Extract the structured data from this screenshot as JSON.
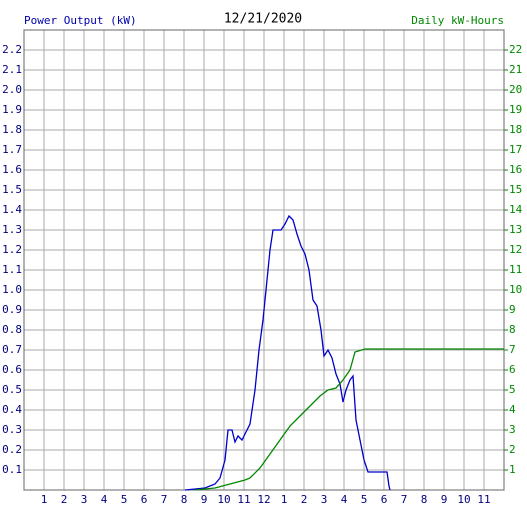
{
  "chart_data": {
    "type": "line",
    "title": "12/21/2020",
    "y_label": "Power Output (kW)",
    "y2_label": "Daily kW-Hours",
    "grid": true,
    "xlim": [
      0,
      24
    ],
    "ylim": [
      0,
      2.3
    ],
    "y2lim": [
      0,
      23
    ],
    "xticks": [
      1,
      2,
      3,
      4,
      5,
      6,
      7,
      8,
      9,
      10,
      11,
      12,
      {
        "value": 13,
        "label": "1"
      },
      {
        "value": 14,
        "label": "2"
      },
      {
        "value": 15,
        "label": "3"
      },
      {
        "value": 16,
        "label": "4"
      },
      {
        "value": 17,
        "label": "5"
      },
      {
        "value": 18,
        "label": "6"
      },
      {
        "value": 19,
        "label": "7"
      },
      {
        "value": 20,
        "label": "8"
      },
      {
        "value": 21,
        "label": "9"
      },
      {
        "value": 22,
        "label": "10"
      },
      {
        "value": 23,
        "label": "11"
      }
    ],
    "yticks": [
      0.1,
      0.2,
      0.3,
      0.4,
      0.5,
      0.6,
      0.7,
      0.8,
      0.9,
      {
        "value": 1,
        "label": "1.0"
      },
      1.1,
      1.2,
      1.3,
      1.4,
      1.5,
      1.6,
      1.7,
      1.8,
      1.9,
      {
        "value": 2,
        "label": "2.0"
      },
      2.1,
      2.2
    ],
    "y2ticks": [
      1,
      2,
      3,
      4,
      5,
      6,
      7,
      8,
      9,
      10,
      11,
      12,
      13,
      14,
      15,
      16,
      17,
      18,
      19,
      20,
      21,
      22
    ],
    "series": [
      {
        "color": "#0000cc",
        "x": [
          8.05,
          9.05,
          9.55,
          9.8,
          10.05,
          10.2,
          10.4,
          10.55,
          10.7,
          10.9,
          11.05,
          11.3,
          11.55,
          11.75,
          11.95,
          12.15,
          12.3,
          12.45,
          12.85,
          13.05,
          13.25,
          13.45,
          13.65,
          13.85,
          14.05,
          14.25,
          14.45,
          14.65,
          14.85,
          15.0,
          15.2,
          15.4,
          15.6,
          15.8,
          15.95,
          16.1,
          16.3,
          16.45,
          16.6,
          16.8,
          17.0,
          17.2,
          17.8,
          18.15,
          18.25,
          18.3
        ],
        "values": [
          0,
          0.01,
          0.03,
          0.06,
          0.15,
          0.3,
          0.3,
          0.24,
          0.27,
          0.25,
          0.28,
          0.33,
          0.5,
          0.7,
          0.85,
          1.05,
          1.2,
          1.3,
          1.3,
          1.33,
          1.37,
          1.35,
          1.28,
          1.22,
          1.18,
          1.1,
          0.95,
          0.92,
          0.8,
          0.67,
          0.7,
          0.66,
          0.58,
          0.53,
          0.44,
          0.5,
          0.55,
          0.57,
          0.35,
          0.25,
          0.15,
          0.09,
          0.09,
          0.09,
          0.02,
          0
        ]
      },
      {
        "color": "#008800",
        "axis": "y2",
        "x": [
          8.55,
          9.55,
          10.3,
          11.05,
          11.3,
          11.8,
          12.3,
          12.8,
          13.3,
          13.8,
          14.3,
          14.8,
          15.2,
          15.6,
          15.95,
          16.3,
          16.55,
          17.05,
          24
        ],
        "values": [
          0,
          0.1,
          0.3,
          0.5,
          0.6,
          1.1,
          1.8,
          2.5,
          3.2,
          3.7,
          4.2,
          4.7,
          5.0,
          5.1,
          5.5,
          6.0,
          6.9,
          7.05,
          7.05
        ]
      }
    ]
  }
}
